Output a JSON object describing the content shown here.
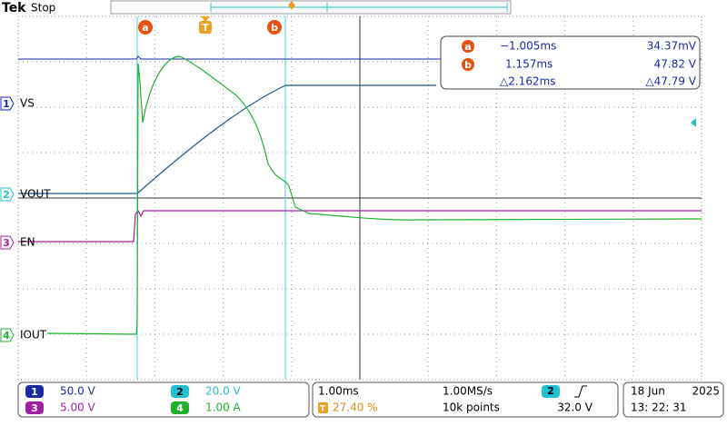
{
  "header": {
    "brand": "Tek",
    "status": "Stop"
  },
  "markers": {
    "cursor_a": "a",
    "trigger": "T",
    "cursor_b": "b"
  },
  "channels": [
    {
      "number": "1",
      "label": "VS",
      "scale": "50.0 V"
    },
    {
      "number": "2",
      "label": "VOUT",
      "scale": "20.0 V"
    },
    {
      "number": "3",
      "label": "EN",
      "scale": "5.00 V"
    },
    {
      "number": "4",
      "label": "IOUT",
      "scale": "1.00 A"
    }
  ],
  "cursor_readout": {
    "a": {
      "time": "−1.005ms",
      "value": "34.37mV"
    },
    "b": {
      "time": "1.157ms",
      "value": "47.82 V"
    },
    "delta": {
      "time": "△2.162ms",
      "value": "△47.79 V"
    }
  },
  "acquisition": {
    "time_scale": "1.00ms",
    "sample_rate": "1.00MS/s",
    "trigger_source": "2",
    "trigger_position": "27.40 %",
    "record_length": "10k points",
    "trigger_level": "32.0 V"
  },
  "clock": {
    "date": "18 Jun",
    "year": "2025",
    "time": "13: 22: 31"
  }
}
